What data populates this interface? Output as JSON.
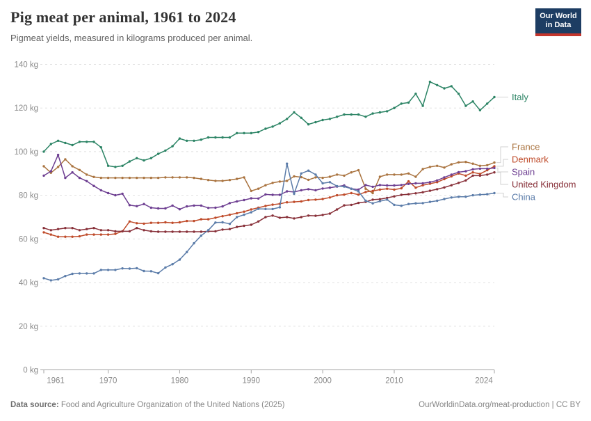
{
  "header": {
    "title": "Pig meat per animal, 1961 to 2024",
    "subtitle": "Pigmeat yields, measured in kilograms produced per animal."
  },
  "logo": {
    "line1": "Our World",
    "line2": "in Data"
  },
  "footer": {
    "source_label": "Data source:",
    "source_text": " Food and Agriculture Organization of the United Nations (2025)",
    "link_text": "OurWorldinData.org/meat-production | CC BY"
  },
  "chart_data": {
    "type": "line",
    "title": "Pig meat per animal, 1961 to 2024",
    "xlabel": "",
    "ylabel": "kg",
    "ylim": [
      0,
      140
    ],
    "yticks": [
      0,
      20,
      40,
      60,
      80,
      100,
      120,
      140
    ],
    "ytick_suffix": " kg",
    "xticks": [
      1961,
      1970,
      1980,
      1990,
      2000,
      2010,
      2024
    ],
    "grid": "dashed-horizontal",
    "legend_position": "right",
    "x": [
      1961,
      1962,
      1963,
      1964,
      1965,
      1966,
      1967,
      1968,
      1969,
      1970,
      1971,
      1972,
      1973,
      1974,
      1975,
      1976,
      1977,
      1978,
      1979,
      1980,
      1981,
      1982,
      1983,
      1984,
      1985,
      1986,
      1987,
      1988,
      1989,
      1990,
      1991,
      1992,
      1993,
      1994,
      1995,
      1996,
      1997,
      1998,
      1999,
      2000,
      2001,
      2002,
      2003,
      2004,
      2005,
      2006,
      2007,
      2008,
      2009,
      2010,
      2011,
      2012,
      2013,
      2014,
      2015,
      2016,
      2017,
      2018,
      2019,
      2020,
      2021,
      2022,
      2023,
      2024
    ],
    "series": [
      {
        "name": "Italy",
        "color": "#2C8465",
        "values": [
          100,
          103.5,
          105,
          104,
          103,
          104.5,
          104.5,
          104.5,
          102,
          93.5,
          93,
          93.5,
          95.5,
          97,
          96,
          97,
          99,
          100.5,
          102.5,
          106,
          105,
          105,
          105.5,
          106.5,
          106.5,
          106.5,
          106.5,
          108.5,
          108.5,
          108.5,
          109,
          110.5,
          111.5,
          113,
          115,
          118,
          115.5,
          112.5,
          113.5,
          114.5,
          115,
          116,
          117,
          117,
          117,
          116,
          117.5,
          118,
          118.5,
          120,
          122,
          122.5,
          126.5,
          121,
          132,
          130.5,
          129,
          130,
          126.5,
          121,
          123,
          119,
          122,
          125
        ]
      },
      {
        "name": "France",
        "color": "#AA7440",
        "values": [
          93.3,
          90.3,
          93,
          96.5,
          93.3,
          91.6,
          89.5,
          88.4,
          88,
          88,
          88,
          88,
          88,
          88,
          88,
          88,
          88,
          88.2,
          88.2,
          88.2,
          88.2,
          88,
          87.5,
          87,
          86.6,
          86.6,
          87,
          87.5,
          88.2,
          82,
          83,
          84.6,
          85.7,
          86.3,
          86.6,
          88.7,
          88.3,
          87.1,
          88.2,
          88,
          88.5,
          89.5,
          89,
          90.5,
          91.5,
          83,
          81,
          88.5,
          89.5,
          89.5,
          89.5,
          90,
          88.5,
          92,
          93,
          93.5,
          92.7,
          94.2,
          95.1,
          95.3,
          94.5,
          93.5,
          93.8,
          95
        ]
      },
      {
        "name": "Denmark",
        "color": "#BF4B2A",
        "values": [
          63,
          62,
          61,
          61,
          61,
          61.2,
          62,
          62,
          62,
          62,
          62.3,
          63.5,
          68,
          67.2,
          67,
          67.4,
          67.4,
          67.6,
          67.4,
          67.6,
          68.2,
          68.2,
          69,
          69,
          69.7,
          70.4,
          71.1,
          71.8,
          72.5,
          73.5,
          74.3,
          75.1,
          75.7,
          76.1,
          76.8,
          77,
          77.2,
          77.8,
          78,
          78.3,
          79,
          80,
          80.3,
          81,
          80.3,
          81.5,
          82,
          82.6,
          83,
          82.6,
          83.2,
          86.4,
          83.5,
          84.6,
          85.3,
          86,
          87.4,
          88.7,
          90,
          89,
          90.5,
          89.8,
          91.5,
          93.3
        ]
      },
      {
        "name": "Spain",
        "color": "#6D3E91",
        "values": [
          89,
          91,
          98.5,
          88,
          90.5,
          88,
          86.5,
          84.3,
          82.3,
          81,
          80,
          80.7,
          75.5,
          75,
          76,
          74.3,
          74,
          74,
          75.3,
          73.6,
          74.9,
          75.3,
          75.3,
          74.2,
          74.3,
          74.9,
          76.4,
          77.2,
          77.8,
          78.6,
          78.5,
          80.4,
          80.2,
          80.2,
          81.8,
          81.5,
          82.3,
          82.8,
          82.3,
          83.1,
          83.5,
          84,
          84.5,
          83,
          82.6,
          84.7,
          83.9,
          84.7,
          84.5,
          84.5,
          84.7,
          85.2,
          85.5,
          85.5,
          86,
          86.8,
          88.2,
          89.5,
          90.6,
          91,
          91.9,
          92.2,
          92.2,
          92.5
        ]
      },
      {
        "name": "United Kingdom",
        "color": "#883039",
        "values": [
          65,
          64,
          64.5,
          65,
          65,
          64,
          64.5,
          65,
          64,
          64,
          63.5,
          63.5,
          63.5,
          65,
          64,
          63.5,
          63.3,
          63.3,
          63.3,
          63.3,
          63.3,
          63.3,
          63.3,
          63.5,
          63.5,
          64.3,
          64.5,
          65.5,
          66,
          66.5,
          68,
          70,
          70.7,
          69.7,
          70,
          69.4,
          70,
          70.7,
          70.6,
          71,
          71.6,
          73.5,
          75.4,
          75.6,
          76.5,
          77,
          78,
          78.2,
          78.8,
          79.5,
          80.2,
          80.5,
          80.9,
          81.4,
          82.1,
          82.8,
          83.6,
          84.6,
          85.7,
          86.8,
          89,
          89,
          89.5,
          90.5
        ]
      },
      {
        "name": "China",
        "color": "#5B7CA9",
        "values": [
          42,
          41,
          41.5,
          43,
          44,
          44.2,
          44.2,
          44.2,
          45.8,
          45.8,
          45.8,
          46.5,
          46.4,
          46.6,
          45.3,
          45.2,
          44.3,
          46.9,
          48.4,
          50.5,
          54,
          58,
          61.5,
          64,
          67.5,
          67.6,
          66.9,
          70,
          71.1,
          72.2,
          73.8,
          73.7,
          73.7,
          74.5,
          94.5,
          80.7,
          90,
          91.3,
          89.5,
          85.5,
          86,
          84.2,
          84,
          83,
          81.8,
          77.5,
          76.3,
          77.3,
          78,
          75.6,
          75.2,
          76,
          76.3,
          76.4,
          77,
          77.5,
          78.3,
          79,
          79.3,
          79.3,
          80,
          80.3,
          80.5,
          81
        ]
      }
    ]
  }
}
